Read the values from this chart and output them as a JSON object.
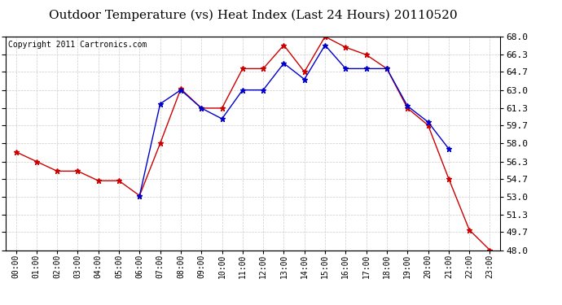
{
  "title": "Outdoor Temperature (vs) Heat Index (Last 24 Hours) 20110520",
  "copyright": "Copyright 2011 Cartronics.com",
  "x_labels": [
    "00:00",
    "01:00",
    "02:00",
    "03:00",
    "04:00",
    "05:00",
    "06:00",
    "07:00",
    "08:00",
    "09:00",
    "10:00",
    "11:00",
    "12:00",
    "13:00",
    "14:00",
    "15:00",
    "16:00",
    "17:00",
    "18:00",
    "19:00",
    "20:00",
    "21:00",
    "22:00",
    "23:00"
  ],
  "red_data": [
    57.2,
    56.3,
    55.4,
    55.4,
    54.5,
    54.5,
    53.1,
    58.0,
    63.1,
    61.3,
    61.3,
    65.0,
    65.0,
    67.2,
    64.7,
    68.0,
    67.0,
    66.3,
    65.0,
    61.3,
    59.7,
    54.7,
    49.9,
    48.0
  ],
  "blue_data": [
    null,
    null,
    null,
    null,
    null,
    null,
    53.1,
    61.7,
    63.0,
    61.3,
    60.3,
    63.0,
    63.0,
    65.5,
    64.0,
    67.2,
    65.0,
    65.0,
    65.0,
    61.5,
    60.0,
    57.5,
    null,
    null
  ],
  "ylim": [
    48.0,
    68.0
  ],
  "yticks": [
    48.0,
    49.7,
    51.3,
    53.0,
    54.7,
    56.3,
    58.0,
    59.7,
    61.3,
    63.0,
    64.7,
    66.3,
    68.0
  ],
  "red_color": "#cc0000",
  "blue_color": "#0000cc",
  "background_color": "#ffffff",
  "plot_bg_color": "#ffffff",
  "grid_color": "#cccccc",
  "title_fontsize": 11,
  "copyright_fontsize": 7
}
